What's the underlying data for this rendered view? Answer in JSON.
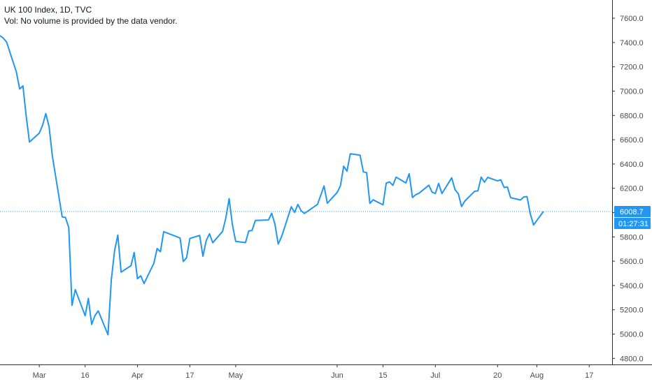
{
  "header": {
    "title": "UK 100 Index, 1D, TVC",
    "volume_note": "Vol: No volume is provided by the data vendor."
  },
  "price_tag": {
    "price": "6008.7",
    "countdown": "01:27:31",
    "value": 6008.7
  },
  "colors": {
    "line": "#2196f3",
    "tag_bg": "#2196f3",
    "axis": "#2a2e39",
    "text": "#4a4a4a"
  },
  "chart_data": {
    "type": "line",
    "title": "",
    "xlabel": "",
    "ylabel": "",
    "ylim": [
      4750,
      7750
    ],
    "y_ticks": [
      "4800.0",
      "5000.0",
      "5200.0",
      "5400.0",
      "5600.0",
      "5800.0",
      "6000.0",
      "6200.0",
      "6400.0",
      "6600.0",
      "6800.0",
      "7000.0",
      "7200.0",
      "7400.0",
      "7600.0"
    ],
    "x_ticks": [
      {
        "label": "Mar",
        "x": "2020-03-02"
      },
      {
        "label": "16",
        "x": "2020-03-16"
      },
      {
        "label": "Apr",
        "x": "2020-04-01"
      },
      {
        "label": "17",
        "x": "2020-04-17"
      },
      {
        "label": "May",
        "x": "2020-05-01"
      },
      {
        "label": "Jun",
        "x": "2020-06-01"
      },
      {
        "label": "15",
        "x": "2020-06-15"
      },
      {
        "label": "Jul",
        "x": "2020-07-01"
      },
      {
        "label": "20",
        "x": "2020-07-20"
      },
      {
        "label": "Aug",
        "x": "2020-08-01"
      },
      {
        "label": "17",
        "x": "2020-08-17"
      }
    ],
    "xlim": [
      "2020-02-19",
      "2020-08-24"
    ],
    "grid": false,
    "series": [
      {
        "points": [
          [
            "2020-02-19",
            7457
          ],
          [
            "2020-02-20",
            7436
          ],
          [
            "2020-02-21",
            7404
          ],
          [
            "2020-02-24",
            7157
          ],
          [
            "2020-02-25",
            7018
          ],
          [
            "2020-02-26",
            7043
          ],
          [
            "2020-02-27",
            6796
          ],
          [
            "2020-02-28",
            6581
          ],
          [
            "2020-03-02",
            6654
          ],
          [
            "2020-03-03",
            6718
          ],
          [
            "2020-03-04",
            6815
          ],
          [
            "2020-03-05",
            6705
          ],
          [
            "2020-03-06",
            6463
          ],
          [
            "2020-03-09",
            5965
          ],
          [
            "2020-03-10",
            5960
          ],
          [
            "2020-03-11",
            5876
          ],
          [
            "2020-03-12",
            5237
          ],
          [
            "2020-03-13",
            5366
          ],
          [
            "2020-03-16",
            5151
          ],
          [
            "2020-03-17",
            5294
          ],
          [
            "2020-03-18",
            5080
          ],
          [
            "2020-03-19",
            5151
          ],
          [
            "2020-03-20",
            5191
          ],
          [
            "2020-03-23",
            4994
          ],
          [
            "2020-03-24",
            5446
          ],
          [
            "2020-03-25",
            5688
          ],
          [
            "2020-03-26",
            5815
          ],
          [
            "2020-03-27",
            5510
          ],
          [
            "2020-03-30",
            5563
          ],
          [
            "2020-03-31",
            5672
          ],
          [
            "2020-04-01",
            5455
          ],
          [
            "2020-04-02",
            5480
          ],
          [
            "2020-04-03",
            5416
          ],
          [
            "2020-04-06",
            5582
          ],
          [
            "2020-04-07",
            5704
          ],
          [
            "2020-04-08",
            5678
          ],
          [
            "2020-04-09",
            5843
          ],
          [
            "2020-04-14",
            5791
          ],
          [
            "2020-04-15",
            5597
          ],
          [
            "2020-04-16",
            5628
          ],
          [
            "2020-04-17",
            5787
          ],
          [
            "2020-04-20",
            5812
          ],
          [
            "2020-04-21",
            5641
          ],
          [
            "2020-04-22",
            5770
          ],
          [
            "2020-04-23",
            5826
          ],
          [
            "2020-04-24",
            5752
          ],
          [
            "2020-04-27",
            5846
          ],
          [
            "2020-04-28",
            5958
          ],
          [
            "2020-04-29",
            6115
          ],
          [
            "2020-04-30",
            5901
          ],
          [
            "2020-05-01",
            5763
          ],
          [
            "2020-05-04",
            5753
          ],
          [
            "2020-05-05",
            5849
          ],
          [
            "2020-05-06",
            5853
          ],
          [
            "2020-05-07",
            5935
          ],
          [
            "2020-05-11",
            5939
          ],
          [
            "2020-05-12",
            5994
          ],
          [
            "2020-05-13",
            5904
          ],
          [
            "2020-05-14",
            5741
          ],
          [
            "2020-05-15",
            5800
          ],
          [
            "2020-05-18",
            6048
          ],
          [
            "2020-05-19",
            6002
          ],
          [
            "2020-05-20",
            6067
          ],
          [
            "2020-05-21",
            6015
          ],
          [
            "2020-05-22",
            5993
          ],
          [
            "2020-05-26",
            6068
          ],
          [
            "2020-05-27",
            6144
          ],
          [
            "2020-05-28",
            6219
          ],
          [
            "2020-05-29",
            6077
          ],
          [
            "2020-06-01",
            6166
          ],
          [
            "2020-06-02",
            6220
          ],
          [
            "2020-06-03",
            6382
          ],
          [
            "2020-06-04",
            6341
          ],
          [
            "2020-06-05",
            6484
          ],
          [
            "2020-06-08",
            6473
          ],
          [
            "2020-06-09",
            6335
          ],
          [
            "2020-06-10",
            6329
          ],
          [
            "2020-06-11",
            6076
          ],
          [
            "2020-06-12",
            6105
          ],
          [
            "2020-06-15",
            6064
          ],
          [
            "2020-06-16",
            6243
          ],
          [
            "2020-06-17",
            6253
          ],
          [
            "2020-06-18",
            6224
          ],
          [
            "2020-06-19",
            6292
          ],
          [
            "2020-06-22",
            6244
          ],
          [
            "2020-06-23",
            6320
          ],
          [
            "2020-06-24",
            6124
          ],
          [
            "2020-06-25",
            6147
          ],
          [
            "2020-06-26",
            6159
          ],
          [
            "2020-06-29",
            6225
          ],
          [
            "2020-06-30",
            6169
          ],
          [
            "2020-07-01",
            6157
          ],
          [
            "2020-07-02",
            6240
          ],
          [
            "2020-07-03",
            6157
          ],
          [
            "2020-07-06",
            6286
          ],
          [
            "2020-07-07",
            6189
          ],
          [
            "2020-07-08",
            6156
          ],
          [
            "2020-07-09",
            6050
          ],
          [
            "2020-07-10",
            6095
          ],
          [
            "2020-07-13",
            6176
          ],
          [
            "2020-07-14",
            6179
          ],
          [
            "2020-07-15",
            6292
          ],
          [
            "2020-07-16",
            6250
          ],
          [
            "2020-07-17",
            6290
          ],
          [
            "2020-07-20",
            6261
          ],
          [
            "2020-07-21",
            6270
          ],
          [
            "2020-07-22",
            6207
          ],
          [
            "2020-07-23",
            6211
          ],
          [
            "2020-07-24",
            6123
          ],
          [
            "2020-07-27",
            6104
          ],
          [
            "2020-07-28",
            6129
          ],
          [
            "2020-07-29",
            6132
          ],
          [
            "2020-07-30",
            5990
          ],
          [
            "2020-07-31",
            5898
          ],
          [
            "2020-08-03",
            6008.7
          ]
        ]
      }
    ]
  }
}
